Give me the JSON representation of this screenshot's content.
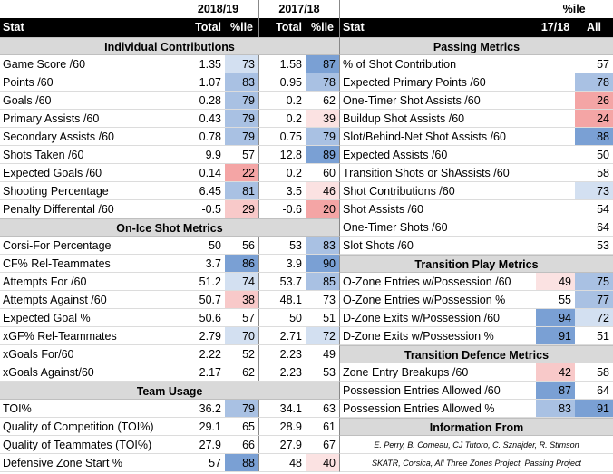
{
  "header": {
    "season1": "2018/19",
    "season2": "2017/18",
    "pctile": "%ile",
    "stat": "Stat",
    "total": "Total",
    "pct": "%ile",
    "right_stat": "Stat",
    "right_1718": "17/18",
    "right_all": "All"
  },
  "colors": {
    "blue_strong": "#7aa0d4",
    "blue_mid": "#a9c1e3",
    "blue_light": "#d3e0f1",
    "red_strong": "#f4a5a5",
    "red_mid": "#f8c9c9",
    "red_light": "#fbe2e2",
    "section_bg": "#d9d9d9"
  },
  "left_rows": [
    {
      "type": "section",
      "label": "Individual Contributions"
    },
    {
      "type": "data",
      "label": "Game Score /60",
      "t1": "1.35",
      "p1": "73",
      "c1": "blue_light",
      "t2": "1.58",
      "p2": "87",
      "c2": "blue_strong"
    },
    {
      "type": "data",
      "label": "Points /60",
      "t1": "1.07",
      "p1": "83",
      "c1": "blue_mid",
      "t2": "0.95",
      "p2": "78",
      "c2": "blue_mid"
    },
    {
      "type": "data",
      "label": "Goals /60",
      "t1": "0.28",
      "p1": "79",
      "c1": "blue_mid",
      "t2": "0.2",
      "p2": "62",
      "c2": ""
    },
    {
      "type": "data",
      "label": "Primary Assists /60",
      "t1": "0.43",
      "p1": "79",
      "c1": "blue_mid",
      "t2": "0.2",
      "p2": "39",
      "c2": "red_light"
    },
    {
      "type": "data",
      "label": "Secondary Assists /60",
      "t1": "0.78",
      "p1": "79",
      "c1": "blue_mid",
      "t2": "0.75",
      "p2": "79",
      "c2": "blue_mid"
    },
    {
      "type": "data",
      "label": "Shots Taken /60",
      "t1": "9.9",
      "p1": "57",
      "c1": "",
      "t2": "12.8",
      "p2": "89",
      "c2": "blue_strong"
    },
    {
      "type": "data",
      "label": "Expected Goals /60",
      "t1": "0.14",
      "p1": "22",
      "c1": "red_strong",
      "t2": "0.2",
      "p2": "60",
      "c2": ""
    },
    {
      "type": "data",
      "label": "Shooting Percentage",
      "t1": "6.45",
      "p1": "81",
      "c1": "blue_mid",
      "t2": "3.5",
      "p2": "46",
      "c2": "red_light"
    },
    {
      "type": "data",
      "label": "Penalty Differental /60",
      "t1": "-0.5",
      "p1": "29",
      "c1": "red_mid",
      "t2": "-0.6",
      "p2": "20",
      "c2": "red_strong"
    },
    {
      "type": "section",
      "label": "On-Ice Shot Metrics"
    },
    {
      "type": "data",
      "label": "Corsi-For Percentage",
      "t1": "50",
      "p1": "56",
      "c1": "",
      "t2": "53",
      "p2": "83",
      "c2": "blue_mid"
    },
    {
      "type": "data",
      "label": "CF% Rel-Teammates",
      "t1": "3.7",
      "p1": "86",
      "c1": "blue_strong",
      "t2": "3.9",
      "p2": "90",
      "c2": "blue_strong"
    },
    {
      "type": "data",
      "label": "Attempts For /60",
      "t1": "51.2",
      "p1": "74",
      "c1": "blue_light",
      "t2": "53.7",
      "p2": "85",
      "c2": "blue_mid"
    },
    {
      "type": "data",
      "label": "Attempts Against /60",
      "t1": "50.7",
      "p1": "38",
      "c1": "red_mid",
      "t2": "48.1",
      "p2": "73",
      "c2": ""
    },
    {
      "type": "data",
      "label": "Expected Goal %",
      "t1": "50.6",
      "p1": "57",
      "c1": "",
      "t2": "50",
      "p2": "51",
      "c2": ""
    },
    {
      "type": "data",
      "label": "xGF% Rel-Teammates",
      "t1": "2.79",
      "p1": "70",
      "c1": "blue_light",
      "t2": "2.71",
      "p2": "72",
      "c2": "blue_light"
    },
    {
      "type": "data",
      "label": "xGoals For/60",
      "t1": "2.22",
      "p1": "52",
      "c1": "",
      "t2": "2.23",
      "p2": "49",
      "c2": ""
    },
    {
      "type": "data",
      "label": "xGoals Against/60",
      "t1": "2.17",
      "p1": "62",
      "c1": "",
      "t2": "2.23",
      "p2": "53",
      "c2": ""
    },
    {
      "type": "section",
      "label": "Team Usage"
    },
    {
      "type": "data",
      "label": "TOI%",
      "t1": "36.2",
      "p1": "79",
      "c1": "blue_mid",
      "t2": "34.1",
      "p2": "63",
      "c2": ""
    },
    {
      "type": "data",
      "label": "Quality of Competition (TOI%)",
      "t1": "29.1",
      "p1": "65",
      "c1": "",
      "t2": "28.9",
      "p2": "61",
      "c2": ""
    },
    {
      "type": "data",
      "label": "Quality of Teammates (TOI%)",
      "t1": "27.9",
      "p1": "66",
      "c1": "",
      "t2": "27.9",
      "p2": "67",
      "c2": ""
    },
    {
      "type": "data",
      "label": "Defensive Zone Start %",
      "t1": "57",
      "p1": "88",
      "c1": "blue_strong",
      "t2": "48",
      "p2": "40",
      "c2": "red_light"
    }
  ],
  "right_rows": [
    {
      "type": "section",
      "label": "Passing Metrics"
    },
    {
      "type": "data",
      "label": "% of Shot Contribution",
      "a": "",
      "ca": "",
      "b": "57",
      "cb": ""
    },
    {
      "type": "data",
      "label": "Expected Primary Points /60",
      "a": "",
      "ca": "",
      "b": "78",
      "cb": "blue_mid"
    },
    {
      "type": "data",
      "label": "One-Timer Shot Assists /60",
      "a": "",
      "ca": "",
      "b": "26",
      "cb": "red_strong"
    },
    {
      "type": "data",
      "label": "Buildup Shot Assists /60",
      "a": "",
      "ca": "",
      "b": "24",
      "cb": "red_strong"
    },
    {
      "type": "data",
      "label": "Slot/Behind-Net Shot Assists /60",
      "a": "",
      "ca": "",
      "b": "88",
      "cb": "blue_strong"
    },
    {
      "type": "data",
      "label": "Expected Assists /60",
      "a": "",
      "ca": "",
      "b": "50",
      "cb": ""
    },
    {
      "type": "data",
      "label": "Transition Shots or ShAssists /60",
      "a": "",
      "ca": "",
      "b": "58",
      "cb": ""
    },
    {
      "type": "data",
      "label": "Shot Contributions /60",
      "a": "",
      "ca": "",
      "b": "73",
      "cb": "blue_light"
    },
    {
      "type": "data",
      "label": "Shot Assists /60",
      "a": "",
      "ca": "",
      "b": "54",
      "cb": ""
    },
    {
      "type": "data",
      "label": "One-Timer Shots /60",
      "a": "",
      "ca": "",
      "b": "64",
      "cb": ""
    },
    {
      "type": "data",
      "label": "Slot Shots /60",
      "a": "",
      "ca": "",
      "b": "53",
      "cb": ""
    },
    {
      "type": "section",
      "label": "Transition Play Metrics"
    },
    {
      "type": "data",
      "label": "O-Zone Entries w/Possession /60",
      "a": "49",
      "ca": "red_light",
      "b": "75",
      "cb": "blue_mid"
    },
    {
      "type": "data",
      "label": "O-Zone Entries w/Possession %",
      "a": "55",
      "ca": "",
      "b": "77",
      "cb": "blue_mid"
    },
    {
      "type": "data",
      "label": "D-Zone Exits w/Possession /60",
      "a": "94",
      "ca": "blue_strong",
      "b": "72",
      "cb": "blue_light"
    },
    {
      "type": "data",
      "label": "D-Zone Exits w/Possession %",
      "a": "91",
      "ca": "blue_strong",
      "b": "51",
      "cb": ""
    },
    {
      "type": "section",
      "label": "Transition Defence Metrics"
    },
    {
      "type": "data",
      "label": "Zone Entry Breakups /60",
      "a": "42",
      "ca": "red_mid",
      "b": "58",
      "cb": ""
    },
    {
      "type": "data",
      "label": "Possession Entries Allowed /60",
      "a": "87",
      "ca": "blue_strong",
      "b": "64",
      "cb": ""
    },
    {
      "type": "data",
      "label": "Possession Entries Allowed %",
      "a": "83",
      "ca": "blue_mid",
      "b": "91",
      "cb": "blue_strong"
    },
    {
      "type": "section",
      "label": "Information From"
    },
    {
      "type": "small",
      "label": "E. Perry, B. Comeau, CJ Tutoro, C. Sznajder, R. Stimson"
    },
    {
      "type": "small",
      "label": "SKATR, Corsica, All Three Zones Project, Passing Project"
    }
  ]
}
